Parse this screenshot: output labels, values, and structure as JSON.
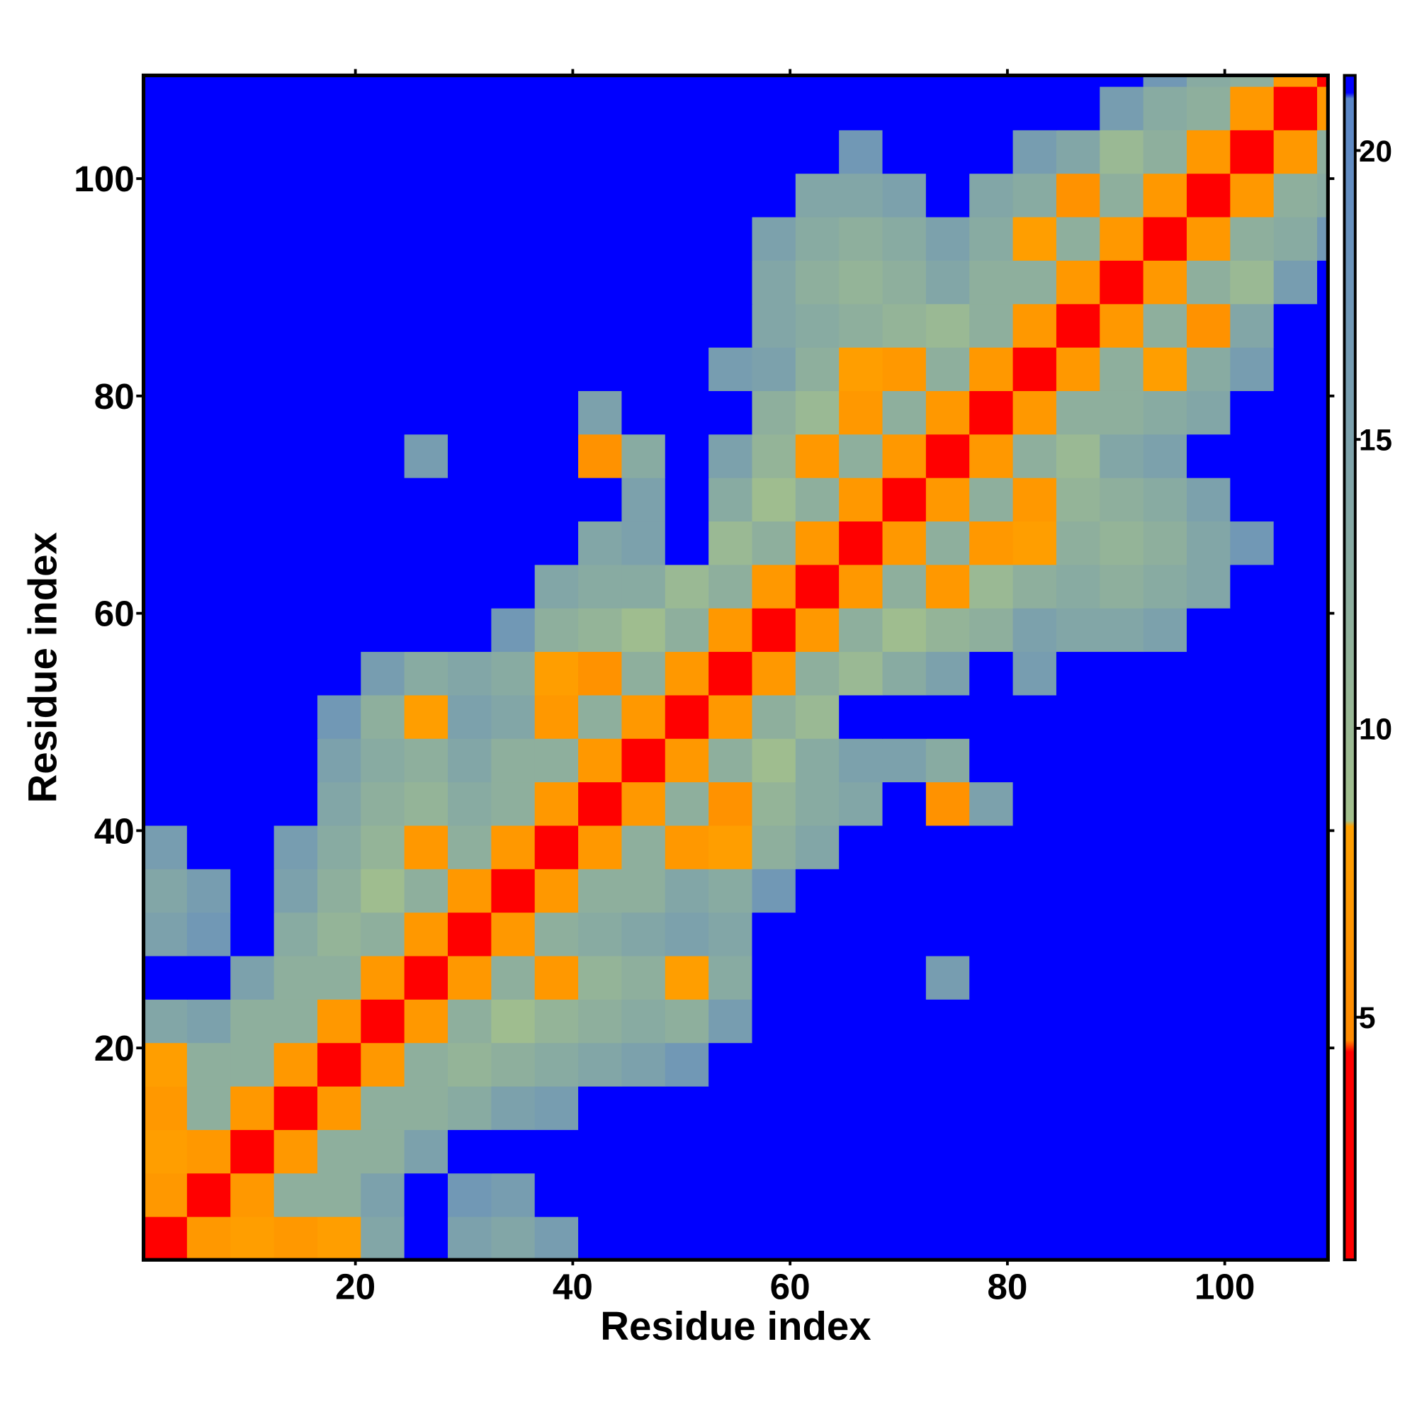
{
  "chart_data": {
    "type": "heatmap",
    "xlabel": "Residue index",
    "ylabel": "Residue index",
    "x_edges": [
      0.5,
      4.5,
      8.5,
      12.5,
      16.5,
      20.5,
      24.5,
      28.5,
      32.5,
      36.5,
      40.5,
      44.5,
      48.5,
      52.5,
      56.5,
      60.5,
      64.5,
      68.5,
      72.5,
      76.5,
      80.5,
      84.5,
      88.5,
      92.5,
      96.5,
      100.5,
      104.5,
      108.5,
      109.5
    ],
    "y_edges": [
      0.5,
      4.5,
      8.5,
      12.5,
      16.5,
      20.5,
      24.5,
      28.5,
      32.5,
      36.5,
      40.5,
      44.5,
      48.5,
      52.5,
      56.5,
      60.5,
      64.5,
      68.5,
      72.5,
      76.5,
      80.5,
      84.5,
      88.5,
      92.5,
      96.5,
      100.5,
      104.5,
      108.5,
      109.5
    ],
    "z": [
      [
        3,
        7,
        8,
        7,
        8,
        14,
        21,
        15,
        14,
        16,
        21,
        21,
        21,
        21,
        21,
        21,
        21,
        21,
        21,
        21,
        21,
        21,
        21,
        21,
        21,
        21,
        21,
        21
      ],
      [
        7,
        3,
        7,
        12,
        12,
        15,
        21,
        17,
        16,
        21,
        21,
        21,
        21,
        21,
        21,
        21,
        21,
        21,
        21,
        21,
        21,
        21,
        21,
        21,
        21,
        21,
        21,
        21
      ],
      [
        8,
        7,
        3,
        7,
        12,
        12,
        15,
        21,
        21,
        21,
        21,
        21,
        21,
        21,
        21,
        21,
        21,
        21,
        21,
        21,
        21,
        21,
        21,
        21,
        21,
        21,
        21,
        21
      ],
      [
        7,
        12,
        7,
        3,
        7,
        12,
        12,
        13,
        15,
        16,
        21,
        21,
        21,
        21,
        21,
        21,
        21,
        21,
        21,
        21,
        21,
        21,
        21,
        21,
        21,
        21,
        21,
        21
      ],
      [
        8,
        12,
        12,
        7,
        3,
        7,
        12,
        11,
        12,
        13,
        14,
        15,
        17,
        21,
        21,
        21,
        21,
        21,
        21,
        21,
        21,
        21,
        21,
        21,
        21,
        21,
        21,
        21
      ],
      [
        14,
        15,
        12,
        12,
        7,
        3,
        7,
        12,
        9,
        11,
        12,
        13,
        12,
        16,
        21,
        21,
        21,
        21,
        21,
        21,
        21,
        21,
        21,
        21,
        21,
        21,
        21,
        21
      ],
      [
        21,
        21,
        15,
        12,
        12,
        7,
        3,
        7,
        12,
        7,
        11,
        12,
        8,
        13,
        21,
        21,
        21,
        21,
        16,
        21,
        21,
        21,
        21,
        21,
        21,
        21,
        21,
        21
      ],
      [
        15,
        17,
        21,
        13,
        11,
        12,
        7,
        3,
        7,
        12,
        13,
        14,
        15,
        14,
        21,
        21,
        21,
        21,
        21,
        21,
        21,
        21,
        21,
        21,
        21,
        21,
        21,
        21
      ],
      [
        14,
        16,
        21,
        15,
        12,
        9,
        12,
        7,
        3,
        7,
        12,
        12,
        14,
        13,
        17,
        21,
        21,
        21,
        21,
        21,
        21,
        21,
        21,
        21,
        21,
        21,
        21,
        21
      ],
      [
        16,
        21,
        21,
        16,
        13,
        11,
        7,
        12,
        7,
        3,
        7,
        12,
        7,
        8,
        12,
        14,
        21,
        21,
        21,
        21,
        21,
        21,
        21,
        21,
        21,
        21,
        21,
        21
      ],
      [
        21,
        21,
        21,
        21,
        14,
        12,
        11,
        13,
        12,
        7,
        3,
        7,
        12,
        6,
        11,
        13,
        14,
        21,
        6,
        15,
        21,
        21,
        21,
        21,
        21,
        21,
        21,
        21
      ],
      [
        21,
        21,
        21,
        21,
        15,
        13,
        12,
        14,
        12,
        12,
        7,
        3,
        7,
        12,
        9,
        13,
        15,
        15,
        13,
        21,
        21,
        21,
        21,
        21,
        21,
        21,
        21,
        21
      ],
      [
        21,
        21,
        21,
        21,
        17,
        12,
        8,
        15,
        14,
        7,
        12,
        7,
        3,
        7,
        12,
        10,
        21,
        21,
        21,
        21,
        21,
        21,
        21,
        21,
        21,
        21,
        21,
        21
      ],
      [
        21,
        21,
        21,
        21,
        21,
        16,
        13,
        14,
        13,
        8,
        6,
        12,
        7,
        3,
        7,
        12,
        10,
        13,
        15,
        21,
        16,
        21,
        21,
        21,
        21,
        21,
        21,
        21
      ],
      [
        21,
        21,
        21,
        21,
        21,
        21,
        21,
        21,
        17,
        12,
        11,
        9,
        12,
        7,
        3,
        7,
        12,
        9,
        11,
        12,
        15,
        14,
        14,
        15,
        21,
        21,
        21,
        21
      ],
      [
        21,
        21,
        21,
        21,
        21,
        21,
        21,
        21,
        21,
        14,
        13,
        13,
        10,
        12,
        7,
        3,
        7,
        12,
        7,
        10,
        12,
        13,
        12,
        13,
        14,
        21,
        21,
        21
      ],
      [
        21,
        21,
        21,
        21,
        21,
        21,
        21,
        21,
        21,
        21,
        14,
        15,
        21,
        10,
        12,
        7,
        3,
        7,
        12,
        7,
        8,
        12,
        11,
        12,
        14,
        17,
        21,
        21
      ],
      [
        21,
        21,
        21,
        21,
        21,
        21,
        21,
        21,
        21,
        21,
        21,
        15,
        21,
        13,
        9,
        12,
        7,
        3,
        7,
        12,
        7,
        11,
        12,
        13,
        15,
        21,
        21,
        21
      ],
      [
        21,
        21,
        21,
        21,
        21,
        21,
        16,
        21,
        21,
        21,
        6,
        13,
        21,
        15,
        11,
        7,
        12,
        7,
        3,
        7,
        12,
        10,
        14,
        15,
        21,
        21,
        21,
        21
      ],
      [
        21,
        21,
        21,
        21,
        21,
        21,
        21,
        21,
        21,
        21,
        15,
        21,
        21,
        21,
        12,
        10,
        7,
        12,
        7,
        3,
        7,
        12,
        12,
        13,
        14,
        21,
        21,
        21
      ],
      [
        21,
        21,
        21,
        21,
        21,
        21,
        21,
        21,
        21,
        21,
        21,
        21,
        21,
        16,
        15,
        12,
        8,
        7,
        12,
        7,
        3,
        7,
        12,
        8,
        13,
        16,
        21,
        21
      ],
      [
        21,
        21,
        21,
        21,
        21,
        21,
        21,
        21,
        21,
        21,
        21,
        21,
        21,
        21,
        14,
        13,
        12,
        11,
        10,
        12,
        7,
        3,
        7,
        12,
        6,
        14,
        21,
        21
      ],
      [
        21,
        21,
        21,
        21,
        21,
        21,
        21,
        21,
        21,
        21,
        21,
        21,
        21,
        21,
        14,
        12,
        11,
        12,
        14,
        12,
        12,
        7,
        3,
        7,
        12,
        10,
        16,
        21
      ],
      [
        21,
        21,
        21,
        21,
        21,
        21,
        21,
        21,
        21,
        21,
        21,
        21,
        21,
        21,
        15,
        13,
        12,
        13,
        15,
        13,
        8,
        12,
        7,
        3,
        7,
        12,
        13,
        17
      ],
      [
        21,
        21,
        21,
        21,
        21,
        21,
        21,
        21,
        21,
        21,
        21,
        21,
        21,
        21,
        21,
        14,
        14,
        15,
        21,
        14,
        13,
        6,
        12,
        7,
        3,
        7,
        12,
        13
      ],
      [
        21,
        21,
        21,
        21,
        21,
        21,
        21,
        21,
        21,
        21,
        21,
        21,
        21,
        21,
        21,
        21,
        17,
        21,
        21,
        21,
        16,
        14,
        10,
        12,
        7,
        3,
        7,
        12
      ],
      [
        21,
        21,
        21,
        21,
        21,
        21,
        21,
        21,
        21,
        21,
        21,
        21,
        21,
        21,
        21,
        21,
        21,
        21,
        21,
        21,
        21,
        21,
        16,
        13,
        12,
        7,
        3,
        7
      ],
      [
        21,
        21,
        21,
        21,
        21,
        21,
        21,
        21,
        21,
        21,
        21,
        21,
        21,
        21,
        21,
        21,
        21,
        21,
        21,
        21,
        21,
        21,
        21,
        17,
        13,
        12,
        7,
        3
      ]
    ],
    "xlim": [
      0.5,
      109.5
    ],
    "ylim": [
      0.5,
      109.5
    ],
    "xticks": [
      20,
      40,
      60,
      80,
      100
    ],
    "yticks": [
      20,
      40,
      60,
      80,
      100
    ],
    "colorbar": {
      "lim": [
        0.8,
        21.3
      ],
      "ticks": [
        5,
        10,
        15,
        20
      ],
      "colorscale": [
        [
          0.8,
          "#ff0000"
        ],
        [
          4.4,
          "#ff0000"
        ],
        [
          4.6,
          "#ff8a00"
        ],
        [
          8.3,
          "#ffa000"
        ],
        [
          8.4,
          "#a3c08c"
        ],
        [
          20.9,
          "#5a86c8"
        ],
        [
          21,
          "#0000ff"
        ]
      ]
    }
  }
}
